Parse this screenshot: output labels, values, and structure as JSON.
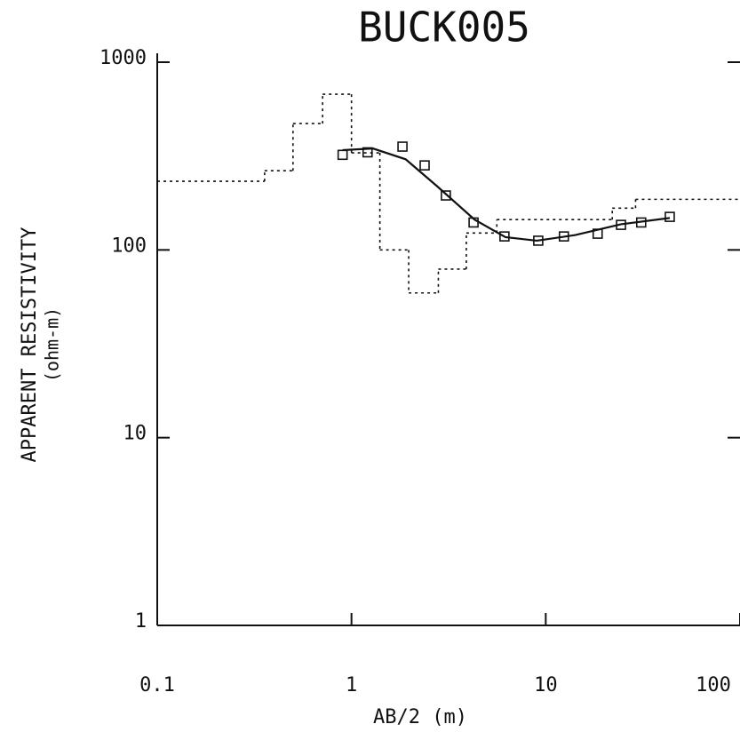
{
  "chart_data": {
    "type": "scatter",
    "title": "BUCK005",
    "x_label": "AB/2  (m)",
    "y_label": "APPARENT RESISTIVITY",
    "y_label_units": "(ohm-m)",
    "log_x": true,
    "log_y": true,
    "xlim": [
      0.1,
      100
    ],
    "ylim": [
      1,
      1000
    ],
    "xticks": [
      0.1,
      1,
      10,
      100
    ],
    "yticks": [
      1,
      10,
      100,
      1000
    ],
    "series": [
      {
        "kind": "points",
        "color": "#111111",
        "x": [
          0.9,
          1.21,
          1.83,
          2.38,
          3.06,
          4.25,
          6.13,
          9.15,
          12.4,
          18.5,
          24.4,
          31,
          43.5
        ],
        "values": [
          321,
          331,
          355,
          282,
          195,
          140,
          118,
          112,
          118,
          122,
          136,
          140,
          150
        ]
      },
      {
        "kind": "line",
        "color": "#111111",
        "x": [
          0.9,
          1.29,
          1.9,
          2.75,
          4.3,
          6.2,
          9.0,
          14.2,
          24.4,
          43.5
        ],
        "values": [
          340,
          347,
          304,
          219,
          145,
          117,
          112,
          120,
          137,
          148
        ]
      },
      {
        "kind": "steps",
        "color": "#111111",
        "x": [
          0.1,
          0.357,
          0.5,
          0.71,
          1.0,
          1.4,
          1.97,
          2.8,
          3.9,
          5.6,
          22,
          29
        ],
        "values": [
          232,
          264,
          471,
          675,
          329,
          100,
          59,
          79,
          123,
          145,
          167,
          186
        ]
      }
    ]
  }
}
